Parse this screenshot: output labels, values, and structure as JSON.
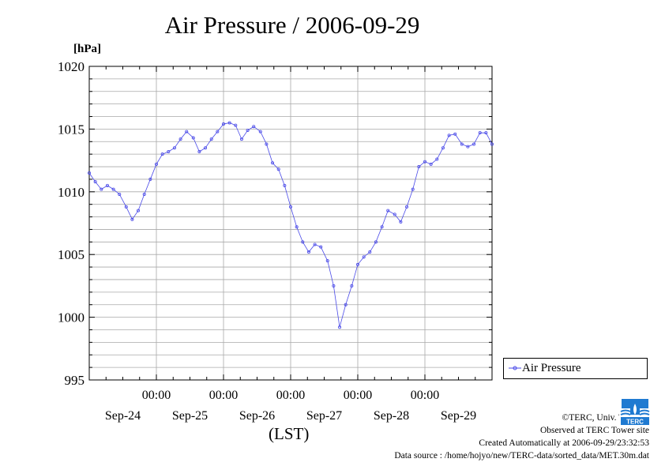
{
  "title": "Air Pressure / 2006-09-29",
  "unit_label": "[hPa]",
  "x_unit_label": "(LST)",
  "legend": {
    "label": "Air Pressure"
  },
  "credits": {
    "copyright": "©TERC, Univ. Tsukuba",
    "observed": "Observed at TERC Tower site",
    "created": "Created Automatically at 2006-09-29/23:32:53",
    "source": "Data source : /home/hojyo/new/TERC-data/sorted_data/MET.30m.dat"
  },
  "logo": {
    "icon": "terc-logo-icon",
    "text": "TERC"
  },
  "colors": {
    "series": "#4a4ae8",
    "grid": "#a9a9a9",
    "axis": "#000000"
  },
  "chart_data": {
    "type": "line",
    "title": "Air Pressure / 2006-09-29",
    "ylabel": "[hPa]",
    "xlabel": "(LST)",
    "ylim": [
      995,
      1020
    ],
    "yticks": [
      995,
      1000,
      1005,
      1010,
      1015,
      1020
    ],
    "x_day_ticks": [
      "00:00",
      "00:00",
      "00:00",
      "00:00",
      "00:00"
    ],
    "x_date_labels": [
      "Sep-24",
      "Sep-25",
      "Sep-26",
      "Sep-27",
      "Sep-28",
      "Sep-29"
    ],
    "xlim_days": [
      0,
      6
    ],
    "grid": true,
    "legend_position": "right",
    "series": [
      {
        "name": "Air Pressure",
        "x": [
          0.0,
          0.09,
          0.18,
          0.27,
          0.36,
          0.45,
          0.55,
          0.64,
          0.73,
          0.82,
          0.91,
          1.0,
          1.09,
          1.18,
          1.27,
          1.36,
          1.45,
          1.55,
          1.64,
          1.73,
          1.82,
          1.91,
          2.0,
          2.09,
          2.18,
          2.27,
          2.36,
          2.45,
          2.55,
          2.64,
          2.73,
          2.82,
          2.91,
          3.0,
          3.09,
          3.18,
          3.27,
          3.36,
          3.45,
          3.55,
          3.64,
          3.73,
          3.82,
          3.91,
          4.0,
          4.09,
          4.18,
          4.27,
          4.36,
          4.45,
          4.55,
          4.64,
          4.73,
          4.82,
          4.91,
          5.0,
          5.09,
          5.18,
          5.27,
          5.36,
          5.45,
          5.55,
          5.64,
          5.73,
          5.82,
          5.91,
          6.0
        ],
        "values": [
          1011.5,
          1010.8,
          1010.2,
          1010.5,
          1010.2,
          1009.8,
          1008.8,
          1007.8,
          1008.5,
          1009.8,
          1011.0,
          1012.2,
          1013.0,
          1013.2,
          1013.5,
          1014.2,
          1014.8,
          1014.3,
          1013.2,
          1013.5,
          1014.2,
          1014.8,
          1015.4,
          1015.5,
          1015.3,
          1014.2,
          1014.9,
          1015.2,
          1014.8,
          1013.8,
          1012.3,
          1011.8,
          1010.5,
          1008.8,
          1007.2,
          1006.0,
          1005.2,
          1005.8,
          1005.6,
          1004.5,
          1002.5,
          999.2,
          1001.0,
          1002.5,
          1004.2,
          1004.8,
          1005.2,
          1006.0,
          1007.2,
          1008.5,
          1008.2,
          1007.6,
          1008.8,
          1010.2,
          1012.0,
          1012.4,
          1012.2,
          1012.6,
          1013.5,
          1014.5,
          1014.6,
          1013.8,
          1013.6,
          1013.8,
          1014.7,
          1014.7,
          1013.8
        ]
      }
    ]
  }
}
